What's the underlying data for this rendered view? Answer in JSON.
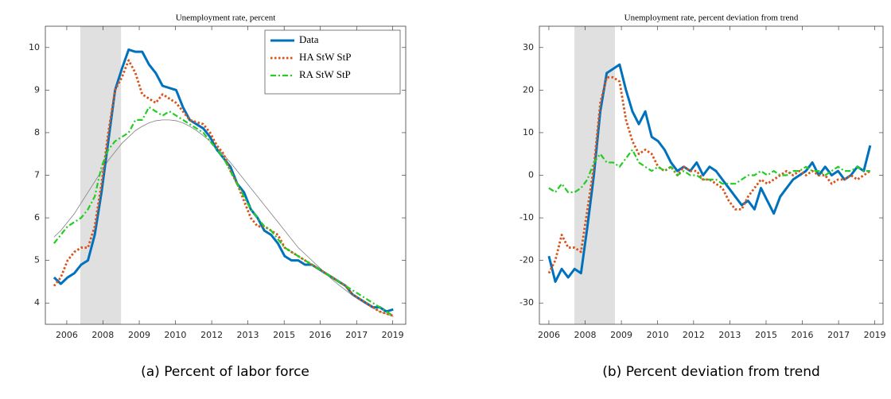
{
  "chart_data": [
    {
      "type": "line",
      "title": "Unemployment rate, percent",
      "caption": "(a) Percent of labor force",
      "x": [
        2006.17,
        2006.42,
        2006.67,
        2006.92,
        2007.17,
        2007.42,
        2007.67,
        2007.92,
        2008.17,
        2008.42,
        2008.67,
        2008.92,
        2009.17,
        2009.42,
        2009.67,
        2009.92,
        2010.17,
        2010.42,
        2010.67,
        2010.92,
        2011.17,
        2011.42,
        2011.67,
        2011.92,
        2012.17,
        2012.42,
        2012.67,
        2012.92,
        2013.17,
        2013.42,
        2013.67,
        2013.92,
        2014.17,
        2014.42,
        2014.67,
        2014.92,
        2015.17,
        2015.42,
        2015.67,
        2015.92,
        2016.17,
        2016.42,
        2016.67,
        2016.92,
        2017.17,
        2017.42,
        2017.67,
        2017.92,
        2018.17,
        2018.42,
        2018.67
      ],
      "series": [
        {
          "name": "Data",
          "color": "#0072bd",
          "style": "solid",
          "values": [
            4.6,
            4.45,
            4.6,
            4.7,
            4.9,
            5.0,
            5.6,
            6.6,
            7.8,
            9.0,
            9.5,
            9.95,
            9.9,
            9.9,
            9.6,
            9.4,
            9.1,
            9.05,
            9.0,
            8.6,
            8.3,
            8.2,
            8.1,
            7.9,
            7.6,
            7.4,
            7.2,
            6.8,
            6.6,
            6.2,
            6.0,
            5.7,
            5.6,
            5.4,
            5.1,
            5.0,
            5.0,
            4.9,
            4.9,
            4.8,
            4.7,
            4.6,
            4.5,
            4.4,
            4.2,
            4.1,
            4.0,
            3.9,
            3.9,
            3.8,
            3.85
          ]
        },
        {
          "name": "HA StW StP",
          "color": "#d95319",
          "style": "dot",
          "values": [
            4.4,
            4.6,
            5.0,
            5.2,
            5.3,
            5.3,
            5.8,
            6.8,
            8.0,
            9.0,
            9.3,
            9.7,
            9.4,
            8.9,
            8.8,
            8.7,
            8.9,
            8.8,
            8.7,
            8.5,
            8.3,
            8.25,
            8.2,
            8.0,
            7.7,
            7.5,
            7.1,
            6.8,
            6.4,
            6.0,
            5.8,
            5.8,
            5.7,
            5.6,
            5.3,
            5.2,
            5.1,
            5.0,
            4.9,
            4.8,
            4.7,
            4.6,
            4.5,
            4.4,
            4.2,
            4.1,
            4.0,
            3.9,
            3.8,
            3.75,
            3.7
          ]
        },
        {
          "name": "RA StW StP",
          "color": "#22cc22",
          "style": "dashdot",
          "values": [
            5.4,
            5.6,
            5.8,
            5.9,
            6.0,
            6.2,
            6.5,
            7.2,
            7.6,
            7.8,
            7.9,
            8.0,
            8.3,
            8.3,
            8.6,
            8.5,
            8.4,
            8.5,
            8.4,
            8.3,
            8.2,
            8.1,
            8.0,
            7.8,
            7.6,
            7.4,
            7.1,
            6.8,
            6.5,
            6.2,
            6.0,
            5.8,
            5.7,
            5.5,
            5.3,
            5.2,
            5.1,
            5.0,
            4.9,
            4.8,
            4.7,
            4.6,
            4.5,
            4.4,
            4.3,
            4.2,
            4.1,
            4.0,
            3.9,
            3.8,
            3.7
          ]
        }
      ],
      "trend": {
        "color": "#808080",
        "values": [
          5.55,
          5.7,
          5.9,
          6.1,
          6.35,
          6.6,
          6.85,
          7.1,
          7.35,
          7.55,
          7.75,
          7.9,
          8.05,
          8.15,
          8.23,
          8.28,
          8.3,
          8.3,
          8.28,
          8.23,
          8.15,
          8.05,
          7.93,
          7.8,
          7.65,
          7.48,
          7.3,
          7.1,
          6.9,
          6.7,
          6.5,
          6.3,
          6.1,
          5.9,
          5.7,
          5.5,
          5.3,
          5.15,
          5.0,
          4.85,
          4.7,
          4.55,
          4.42,
          4.3,
          4.18,
          4.07,
          3.97,
          3.88,
          3.8,
          3.74,
          3.68
        ]
      },
      "shade": [
        2007.14,
        2008.64
      ],
      "shade_color": "#e0e0e0",
      "xlim": [
        2005.85,
        2019.13
      ],
      "xticks": [
        {
          "value": 2006.64,
          "label": "2006"
        },
        {
          "value": 2007.97,
          "label": "2008"
        },
        {
          "value": 2009.31,
          "label": "2009"
        },
        {
          "value": 2010.64,
          "label": "2010"
        },
        {
          "value": 2011.98,
          "label": "2012"
        },
        {
          "value": 2013.31,
          "label": "2013"
        },
        {
          "value": 2014.65,
          "label": "2015"
        },
        {
          "value": 2015.98,
          "label": "2016"
        },
        {
          "value": 2017.32,
          "label": "2017"
        },
        {
          "value": 2018.65,
          "label": "2019"
        }
      ],
      "ylim": [
        3.5,
        10.5
      ],
      "yticks": [
        4,
        5,
        6,
        7,
        8,
        9,
        10
      ],
      "legend": "upper right"
    },
    {
      "type": "line",
      "title": "Unemployment rate, percent deviation from trend",
      "caption": "(b) Percent deviation from trend",
      "x": [
        2006.17,
        2006.42,
        2006.67,
        2006.92,
        2007.17,
        2007.42,
        2007.67,
        2007.92,
        2008.17,
        2008.42,
        2008.67,
        2008.92,
        2009.17,
        2009.42,
        2009.67,
        2009.92,
        2010.17,
        2010.42,
        2010.67,
        2010.92,
        2011.17,
        2011.42,
        2011.67,
        2011.92,
        2012.17,
        2012.42,
        2012.67,
        2012.92,
        2013.17,
        2013.42,
        2013.67,
        2013.92,
        2014.17,
        2014.42,
        2014.67,
        2014.92,
        2015.17,
        2015.42,
        2015.67,
        2015.92,
        2016.17,
        2016.42,
        2016.67,
        2016.92,
        2017.17,
        2017.42,
        2017.67,
        2017.92,
        2018.17,
        2018.42,
        2018.67
      ],
      "series": [
        {
          "color": "#0072bd",
          "style": "solid",
          "values": [
            -19,
            -25,
            -22,
            -24,
            -22,
            -23,
            -12,
            0,
            15,
            24,
            25,
            26,
            20,
            15,
            12,
            15,
            9,
            8,
            6,
            3,
            1,
            2,
            1,
            3,
            0,
            2,
            1,
            -1,
            -3,
            -5,
            -7,
            -6,
            -8,
            -3,
            -6,
            -9,
            -5,
            -3,
            -1,
            0,
            1,
            3,
            0,
            2,
            0,
            1,
            -1,
            0,
            2,
            1,
            7
          ]
        },
        {
          "color": "#d95319",
          "style": "dot",
          "values": [
            -23,
            -20,
            -14,
            -17,
            -17,
            -18,
            -8,
            2,
            17,
            23,
            23,
            22,
            13,
            8,
            5,
            6,
            5,
            2,
            1,
            2,
            0,
            2,
            1,
            1,
            -1,
            -1,
            -2,
            -3,
            -6,
            -8,
            -8,
            -5,
            -3,
            -1,
            -2,
            -1,
            0,
            1,
            0,
            1,
            0,
            1,
            0,
            0,
            -2,
            -1,
            -1,
            0,
            -1,
            0,
            1
          ]
        },
        {
          "color": "#22cc22",
          "style": "dashdot",
          "values": [
            -3,
            -4,
            -2,
            -4,
            -4,
            -3,
            -1,
            3,
            5,
            3,
            3,
            2,
            4,
            6,
            3,
            2,
            1,
            2,
            1,
            2,
            0,
            1,
            0,
            0,
            -1,
            -1,
            -1,
            -2,
            -2,
            -2,
            -1,
            0,
            0,
            1,
            0,
            1,
            0,
            0,
            1,
            1,
            2,
            1,
            1,
            0,
            1,
            2,
            1,
            1,
            2,
            1,
            1
          ]
        }
      ],
      "shade": [
        2007.16,
        2008.74
      ],
      "shade_color": "#e0e0e0",
      "xlim": [
        2005.8,
        2019.17
      ],
      "xticks": [
        {
          "value": 2006.17,
          "label": "2006"
        },
        {
          "value": 2007.58,
          "label": "2008"
        },
        {
          "value": 2008.99,
          "label": "2009"
        },
        {
          "value": 2010.4,
          "label": "2010"
        },
        {
          "value": 2011.8,
          "label": "2012"
        },
        {
          "value": 2013.21,
          "label": "2013"
        },
        {
          "value": 2014.62,
          "label": "2015"
        },
        {
          "value": 2016.03,
          "label": "2016"
        },
        {
          "value": 2017.44,
          "label": "2017"
        },
        {
          "value": 2018.85,
          "label": "2019"
        }
      ],
      "ylim": [
        -35,
        35
      ],
      "yticks": [
        -30,
        -20,
        -10,
        0,
        10,
        20,
        30
      ]
    }
  ]
}
